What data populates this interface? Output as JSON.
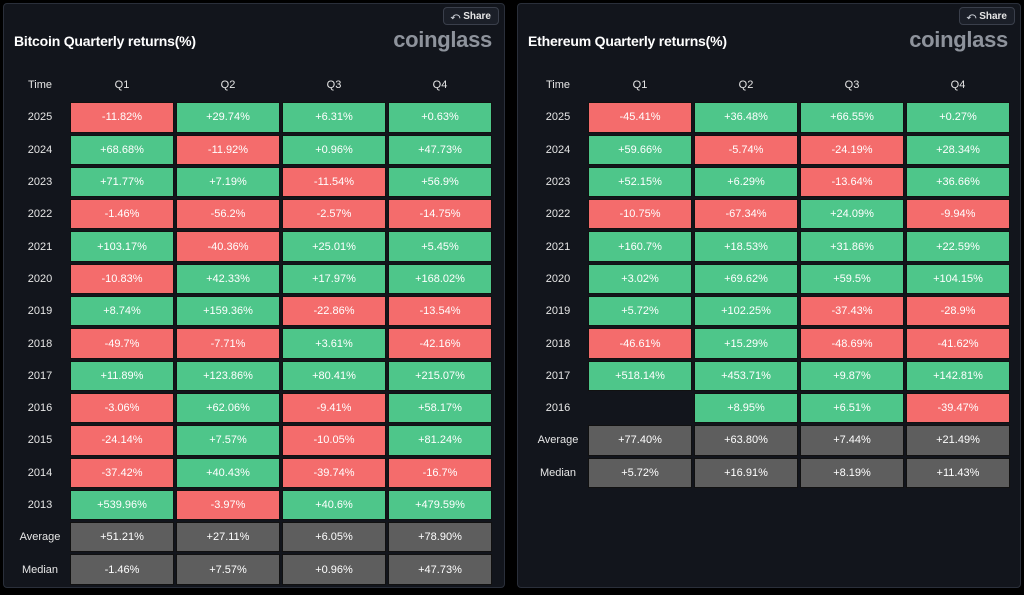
{
  "panels": [
    {
      "id": "btc",
      "title": "Bitcoin Quarterly returns(%)",
      "brand": "coinglass",
      "share_label": "Share",
      "headers": [
        "Time",
        "Q1",
        "Q2",
        "Q3",
        "Q4"
      ],
      "rows": [
        {
          "label": "2025",
          "values": [
            "-11.82%",
            "+29.74%",
            "+6.31%",
            "+0.63%"
          ]
        },
        {
          "label": "2024",
          "values": [
            "+68.68%",
            "-11.92%",
            "+0.96%",
            "+47.73%"
          ]
        },
        {
          "label": "2023",
          "values": [
            "+71.77%",
            "+7.19%",
            "-11.54%",
            "+56.9%"
          ]
        },
        {
          "label": "2022",
          "values": [
            "-1.46%",
            "-56.2%",
            "-2.57%",
            "-14.75%"
          ]
        },
        {
          "label": "2021",
          "values": [
            "+103.17%",
            "-40.36%",
            "+25.01%",
            "+5.45%"
          ]
        },
        {
          "label": "2020",
          "values": [
            "-10.83%",
            "+42.33%",
            "+17.97%",
            "+168.02%"
          ]
        },
        {
          "label": "2019",
          "values": [
            "+8.74%",
            "+159.36%",
            "-22.86%",
            "-13.54%"
          ]
        },
        {
          "label": "2018",
          "values": [
            "-49.7%",
            "-7.71%",
            "+3.61%",
            "-42.16%"
          ]
        },
        {
          "label": "2017",
          "values": [
            "+11.89%",
            "+123.86%",
            "+80.41%",
            "+215.07%"
          ]
        },
        {
          "label": "2016",
          "values": [
            "-3.06%",
            "+62.06%",
            "-9.41%",
            "+58.17%"
          ]
        },
        {
          "label": "2015",
          "values": [
            "-24.14%",
            "+7.57%",
            "-10.05%",
            "+81.24%"
          ]
        },
        {
          "label": "2014",
          "values": [
            "-37.42%",
            "+40.43%",
            "-39.74%",
            "-16.7%"
          ]
        },
        {
          "label": "2013",
          "values": [
            "+539.96%",
            "-3.97%",
            "+40.6%",
            "+479.59%"
          ]
        }
      ],
      "stats": [
        {
          "label": "Average",
          "values": [
            "+51.21%",
            "+27.11%",
            "+6.05%",
            "+78.90%"
          ]
        },
        {
          "label": "Median",
          "values": [
            "-1.46%",
            "+7.57%",
            "+0.96%",
            "+47.73%"
          ]
        }
      ]
    },
    {
      "id": "eth",
      "title": "Ethereum Quarterly returns(%)",
      "brand": "coinglass",
      "share_label": "Share",
      "headers": [
        "Time",
        "Q1",
        "Q2",
        "Q3",
        "Q4"
      ],
      "rows": [
        {
          "label": "2025",
          "values": [
            "-45.41%",
            "+36.48%",
            "+66.55%",
            "+0.27%"
          ]
        },
        {
          "label": "2024",
          "values": [
            "+59.66%",
            "-5.74%",
            "-24.19%",
            "+28.34%"
          ]
        },
        {
          "label": "2023",
          "values": [
            "+52.15%",
            "+6.29%",
            "-13.64%",
            "+36.66%"
          ]
        },
        {
          "label": "2022",
          "values": [
            "-10.75%",
            "-67.34%",
            "+24.09%",
            "-9.94%"
          ]
        },
        {
          "label": "2021",
          "values": [
            "+160.7%",
            "+18.53%",
            "+31.86%",
            "+22.59%"
          ]
        },
        {
          "label": "2020",
          "values": [
            "+3.02%",
            "+69.62%",
            "+59.5%",
            "+104.15%"
          ]
        },
        {
          "label": "2019",
          "values": [
            "+5.72%",
            "+102.25%",
            "-37.43%",
            "-28.9%"
          ]
        },
        {
          "label": "2018",
          "values": [
            "-46.61%",
            "+15.29%",
            "-48.69%",
            "-41.62%"
          ]
        },
        {
          "label": "2017",
          "values": [
            "+518.14%",
            "+453.71%",
            "+9.87%",
            "+142.81%"
          ]
        },
        {
          "label": "2016",
          "values": [
            "",
            "+8.95%",
            "+6.51%",
            "-39.47%"
          ]
        }
      ],
      "stats": [
        {
          "label": "Average",
          "values": [
            "+77.40%",
            "+63.80%",
            "+7.44%",
            "+21.49%"
          ]
        },
        {
          "label": "Median",
          "values": [
            "+5.72%",
            "+16.91%",
            "+8.19%",
            "+11.43%"
          ]
        }
      ]
    }
  ],
  "colors": {
    "positive": "#4ec68a",
    "negative": "#f46c6c",
    "stat": "#5e5e5e"
  },
  "icons": {
    "share": "share-icon"
  }
}
